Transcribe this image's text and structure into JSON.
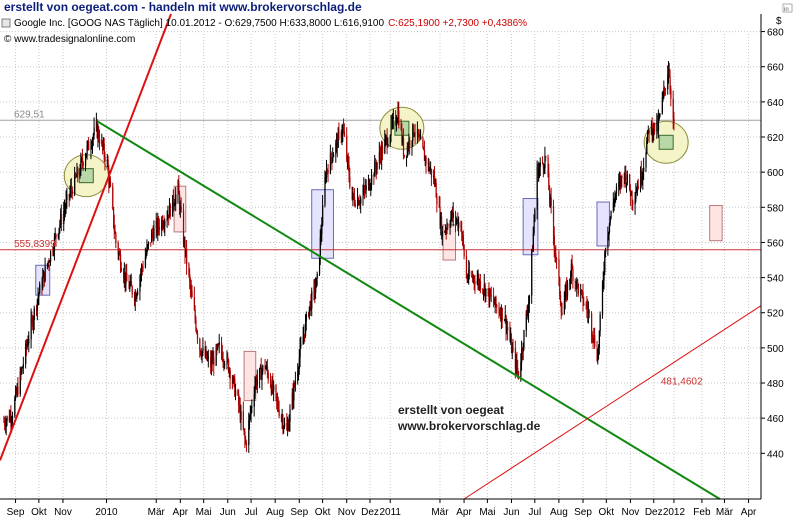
{
  "top_title": "erstellt von oegeat.com - handeln mit www.brokervorschlag.de",
  "header": {
    "instrument": "Google Inc. [GOOG NAS  Täglich] 10.01.2012 - O:629,7500 H:633,8000 L:616,9100",
    "change": "C:625,1900 +2,7300 +0,4386%",
    "source": "© www.tradesignalonline.com"
  },
  "colors": {
    "title": "#0b1f7a",
    "change_text": "#cc0000",
    "up_candle": "#000000",
    "down_candle": "#aa0000",
    "trend_red": "#dd1111",
    "trend_green": "#118811",
    "hline_red": "#cc3333",
    "hline_gray": "#a0a0a0",
    "box_blue": "#e4e4ff",
    "box_red": "#ffe4e4",
    "circle_fill": "#f4f4c8",
    "square_fill": "#b8d8a8"
  },
  "chart_data": {
    "type": "candlestick",
    "title": "Google Inc. [GOOG NAS  Täglich]",
    "y_unit": "$",
    "ylim": [
      414,
      690
    ],
    "y_ticks": [
      440,
      460,
      480,
      500,
      520,
      540,
      560,
      580,
      600,
      620,
      640,
      660,
      680
    ],
    "x_labels": [
      "Sep",
      "Okt",
      "Nov",
      "2010",
      "Mär",
      "Apr",
      "Mai",
      "Jun",
      "Jul",
      "Aug",
      "Sep",
      "Okt",
      "Nov",
      "Dez",
      "2011",
      "Mär",
      "Apr",
      "Mai",
      "Jun",
      "Jul",
      "Aug",
      "Sep",
      "Okt",
      "Nov",
      "Dez",
      "2012",
      "Feb",
      "Mär",
      "Apr"
    ],
    "grid": true,
    "price_path": [
      [
        "2009-08-31",
        458
      ],
      [
        "2009-09-10",
        462
      ],
      [
        "2009-09-22",
        485
      ],
      [
        "2009-10-01",
        505
      ],
      [
        "2009-10-13",
        528
      ],
      [
        "2009-10-26",
        548
      ],
      [
        "2009-11-10",
        570
      ],
      [
        "2009-11-24",
        588
      ],
      [
        "2009-12-03",
        598
      ],
      [
        "2009-12-15",
        612
      ],
      [
        "2009-12-28",
        625
      ],
      [
        "2010-01-11",
        605
      ],
      [
        "2010-01-22",
        560
      ],
      [
        "2010-02-04",
        538
      ],
      [
        "2010-02-16",
        530
      ],
      [
        "2010-02-26",
        548
      ],
      [
        "2010-03-10",
        565
      ],
      [
        "2010-03-22",
        572
      ],
      [
        "2010-04-01",
        578
      ],
      [
        "2010-04-12",
        590
      ],
      [
        "2010-04-19",
        562
      ],
      [
        "2010-04-29",
        530
      ],
      [
        "2010-05-10",
        500
      ],
      [
        "2010-05-24",
        490
      ],
      [
        "2010-06-04",
        500
      ],
      [
        "2010-06-16",
        490
      ],
      [
        "2010-06-28",
        470
      ],
      [
        "2010-07-08",
        445
      ],
      [
        "2010-07-20",
        480
      ],
      [
        "2010-08-02",
        490
      ],
      [
        "2010-08-16",
        470
      ],
      [
        "2010-08-30",
        452
      ],
      [
        "2010-09-13",
        490
      ],
      [
        "2010-09-27",
        522
      ],
      [
        "2010-10-08",
        538
      ],
      [
        "2010-10-19",
        600
      ],
      [
        "2010-10-29",
        612
      ],
      [
        "2010-11-10",
        625
      ],
      [
        "2010-11-22",
        585
      ],
      [
        "2010-12-03",
        585
      ],
      [
        "2010-12-15",
        595
      ],
      [
        "2010-12-28",
        610
      ],
      [
        "2011-01-07",
        620
      ],
      [
        "2011-01-20",
        634
      ],
      [
        "2011-01-28",
        610
      ],
      [
        "2011-02-10",
        625
      ],
      [
        "2011-02-22",
        610
      ],
      [
        "2011-03-08",
        595
      ],
      [
        "2011-03-18",
        565
      ],
      [
        "2011-03-30",
        575
      ],
      [
        "2011-04-11",
        570
      ],
      [
        "2011-04-18",
        540
      ],
      [
        "2011-04-29",
        540
      ],
      [
        "2011-05-10",
        535
      ],
      [
        "2011-05-24",
        525
      ],
      [
        "2011-06-06",
        518
      ],
      [
        "2011-06-16",
        498
      ],
      [
        "2011-06-24",
        485
      ],
      [
        "2011-07-08",
        530
      ],
      [
        "2011-07-18",
        600
      ],
      [
        "2011-07-29",
        608
      ],
      [
        "2011-08-09",
        560
      ],
      [
        "2011-08-19",
        520
      ],
      [
        "2011-08-31",
        545
      ],
      [
        "2011-09-12",
        530
      ],
      [
        "2011-09-22",
        520
      ],
      [
        "2011-10-04",
        495
      ],
      [
        "2011-10-14",
        560
      ],
      [
        "2011-10-25",
        585
      ],
      [
        "2011-11-07",
        600
      ],
      [
        "2011-11-18",
        585
      ],
      [
        "2011-11-30",
        600
      ],
      [
        "2011-12-09",
        625
      ],
      [
        "2011-12-20",
        625
      ],
      [
        "2012-01-03",
        660
      ],
      [
        "2012-01-10",
        625
      ]
    ],
    "trendlines": [
      {
        "color": "red",
        "from": [
          "2009-08-26",
          436
        ],
        "to": [
          "2010-04-03",
          690
        ]
      },
      {
        "color": "green",
        "from": [
          "2009-12-29",
          629
        ],
        "to": [
          "2012-03-09",
          414
        ]
      },
      {
        "color": "red",
        "from": [
          "2011-04-15",
          414
        ],
        "to": [
          "2012-05-01",
          524
        ]
      }
    ],
    "horizontal_lines": [
      {
        "label": "629,51",
        "value": 629.51,
        "color": "gray"
      },
      {
        "label": "555,8399",
        "value": 555.84,
        "color": "red"
      }
    ],
    "annotation_labels": [
      {
        "text": "481,4602",
        "date": "2012-01-20",
        "value": 481.46
      }
    ],
    "highlight_boxes": [
      {
        "color": "blue",
        "from": "2009-10-11",
        "to": "2009-10-29",
        "low": 530,
        "high": 547
      },
      {
        "color": "red",
        "from": "2010-04-07",
        "to": "2010-04-22",
        "low": 566,
        "high": 592
      },
      {
        "color": "red",
        "from": "2010-07-06",
        "to": "2010-07-21",
        "low": 470,
        "high": 498
      },
      {
        "color": "blue",
        "from": "2010-10-01",
        "to": "2010-10-29",
        "low": 551,
        "high": 590
      },
      {
        "color": "red",
        "from": "2011-03-19",
        "to": "2011-04-04",
        "low": 550,
        "high": 570
      },
      {
        "color": "blue",
        "from": "2011-06-30",
        "to": "2011-07-19",
        "low": 553,
        "high": 585
      },
      {
        "color": "blue",
        "from": "2011-10-03",
        "to": "2011-10-19",
        "low": 558,
        "high": 583
      },
      {
        "color": "red",
        "from": "2012-02-25",
        "to": "2012-03-12",
        "low": 561,
        "high": 581
      }
    ],
    "highlight_circles": [
      {
        "date": "2009-12-15",
        "value": 598
      },
      {
        "date": "2011-01-25",
        "value": 625
      },
      {
        "date": "2011-12-31",
        "value": 617
      }
    ],
    "watermark": [
      "erstellt von oegeat",
      "www.brokervorschlag.de"
    ]
  }
}
